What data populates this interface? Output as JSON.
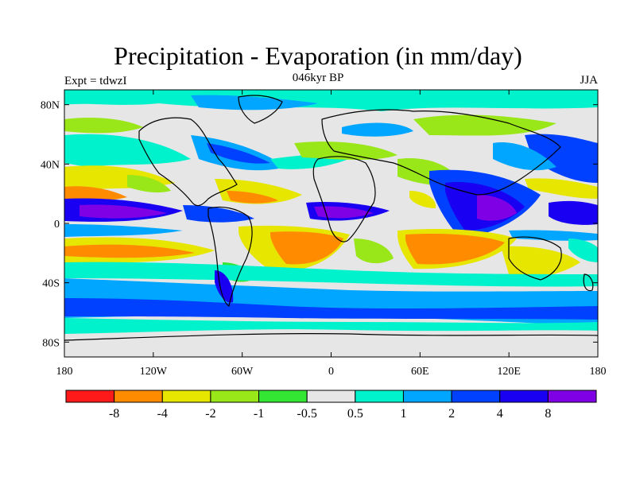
{
  "title": "Precipitation - Evaporation (in mm/day)",
  "experiment": "Expt = tdwzI",
  "period": "046kyr BP",
  "season": "JJA",
  "map": {
    "projection": "cylindrical equidistant",
    "lon_range": [
      -180,
      180
    ],
    "lat_range": [
      -90,
      90
    ],
    "lat_ticks": [
      {
        "value": 80,
        "label": "80N"
      },
      {
        "value": 40,
        "label": "40N"
      },
      {
        "value": 0,
        "label": "0"
      },
      {
        "value": -40,
        "label": "40S"
      },
      {
        "value": -80,
        "label": "80S"
      }
    ],
    "lon_ticks": [
      {
        "value": -180,
        "label": "180"
      },
      {
        "value": -120,
        "label": "120W"
      },
      {
        "value": -60,
        "label": "60W"
      },
      {
        "value": 0,
        "label": "0"
      },
      {
        "value": 60,
        "label": "60E"
      },
      {
        "value": 120,
        "label": "120E"
      },
      {
        "value": 180,
        "label": "180"
      }
    ],
    "background_color": "#e6e6e6"
  },
  "colorbar": {
    "colors": [
      "#ff1a1a",
      "#ff8c00",
      "#e6e600",
      "#99e619",
      "#33e633",
      "#e6e6e6",
      "#00f2cc",
      "#00a6ff",
      "#0040ff",
      "#1a00f2",
      "#8000e6"
    ],
    "labels": [
      "-8",
      "-4",
      "-2",
      "-1",
      "-0.5",
      "0.5",
      "1",
      "2",
      "4",
      "8"
    ]
  }
}
